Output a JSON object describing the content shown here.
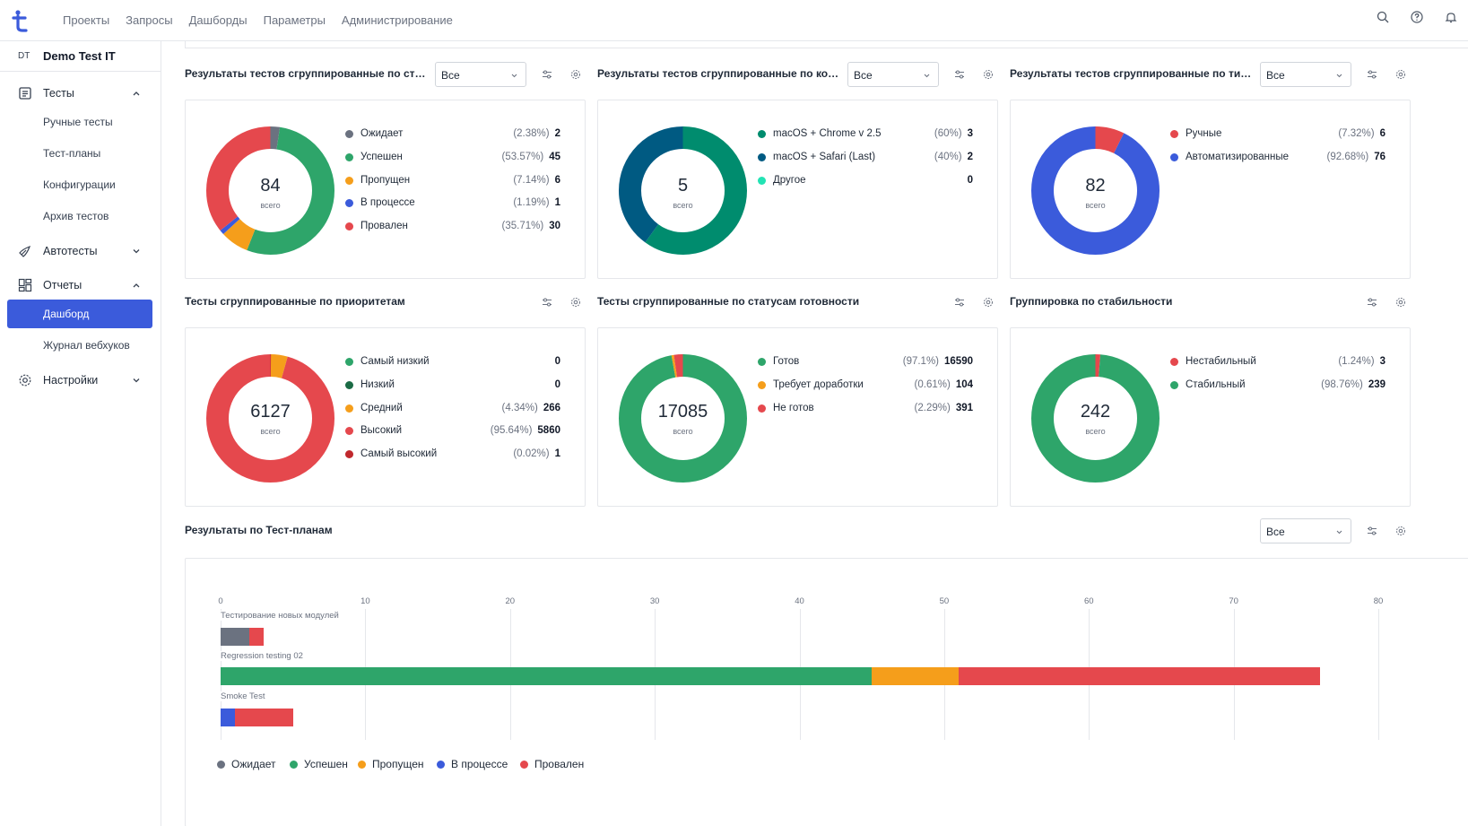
{
  "nav": {
    "items": [
      "Проекты",
      "Запросы",
      "Дашборды",
      "Параметры",
      "Администрирование"
    ]
  },
  "project": {
    "badge": "DT",
    "name": "Demo Test IT"
  },
  "sidebar": {
    "tests": "Тесты",
    "manual": "Ручные тесты",
    "plans": "Тест-планы",
    "configs": "Конфигурации",
    "archive": "Архив тестов",
    "autotests": "Автотесты",
    "reports": "Отчеты",
    "dashboard": "Дашборд",
    "webhooks": "Журнал вебхуков",
    "settings": "Настройки"
  },
  "widgets": [
    {
      "title": "Результаты тестов сгруппированные по статус...",
      "filter": "Все",
      "total": "84",
      "total_label": "всего",
      "legend": [
        {
          "label": "Ожидает",
          "pct": "(2.38%)",
          "val": "2",
          "color": "#6b7280",
          "value": 2
        },
        {
          "label": "Успешен",
          "pct": "(53.57%)",
          "val": "45",
          "color": "#2ea56a",
          "value": 45
        },
        {
          "label": "Пропущен",
          "pct": "(7.14%)",
          "val": "6",
          "color": "#f59e1b",
          "value": 6
        },
        {
          "label": "В процессе",
          "pct": "(1.19%)",
          "val": "1",
          "color": "#3b5bdb",
          "value": 1
        },
        {
          "label": "Провален",
          "pct": "(35.71%)",
          "val": "30",
          "color": "#e5484d",
          "value": 30
        }
      ]
    },
    {
      "title": "Результаты тестов сгруппированные по конфиг...",
      "filter": "Все",
      "total": "5",
      "total_label": "всего",
      "legend": [
        {
          "label": "macOS + Chrome v 2.5",
          "pct": "(60%)",
          "val": "3",
          "color": "#008c6e",
          "value": 3
        },
        {
          "label": "macOS + Safari (Last)",
          "pct": "(40%)",
          "val": "2",
          "color": "#005a82",
          "value": 2
        },
        {
          "label": "Другое",
          "pct": "",
          "val": "0",
          "color": "#22e3b4",
          "value": 0
        }
      ]
    },
    {
      "title": "Результаты тестов сгруппированные по типу ав...",
      "filter": "Все",
      "total": "82",
      "total_label": "всего",
      "legend": [
        {
          "label": "Ручные",
          "pct": "(7.32%)",
          "val": "6",
          "color": "#e5484d",
          "value": 6
        },
        {
          "label": "Автоматизированные",
          "pct": "(92.68%)",
          "val": "76",
          "color": "#3b5bdb",
          "value": 76
        }
      ]
    },
    {
      "title": "Тесты сгруппированные по приоритетам",
      "total": "6127",
      "total_label": "всего",
      "legend": [
        {
          "label": "Самый низкий",
          "pct": "",
          "val": "0",
          "color": "#2ea56a",
          "value": 0
        },
        {
          "label": "Низкий",
          "pct": "",
          "val": "0",
          "color": "#1b6b45",
          "value": 0
        },
        {
          "label": "Средний",
          "pct": "(4.34%)",
          "val": "266",
          "color": "#f59e1b",
          "value": 266
        },
        {
          "label": "Высокий",
          "pct": "(95.64%)",
          "val": "5860",
          "color": "#e5484d",
          "value": 5860
        },
        {
          "label": "Самый высокий",
          "pct": "(0.02%)",
          "val": "1",
          "color": "#c0282d",
          "value": 1
        }
      ]
    },
    {
      "title": "Тесты сгруппированные по статусам готовности",
      "total": "17085",
      "total_label": "всего",
      "legend": [
        {
          "label": "Готов",
          "pct": "(97.1%)",
          "val": "16590",
          "color": "#2ea56a",
          "value": 16590
        },
        {
          "label": "Требует доработки",
          "pct": "(0.61%)",
          "val": "104",
          "color": "#f59e1b",
          "value": 104
        },
        {
          "label": "Не готов",
          "pct": "(2.29%)",
          "val": "391",
          "color": "#e5484d",
          "value": 391
        }
      ]
    },
    {
      "title": "Группировка по стабильности",
      "total": "242",
      "total_label": "всего",
      "legend": [
        {
          "label": "Нестабильный",
          "pct": "(1.24%)",
          "val": "3",
          "color": "#e5484d",
          "value": 3
        },
        {
          "label": "Стабильный",
          "pct": "(98.76%)",
          "val": "239",
          "color": "#2ea56a",
          "value": 239
        }
      ]
    }
  ],
  "plans_widget": {
    "title": "Результаты по Тест-планам",
    "filter": "Все"
  },
  "chart_data": {
    "type": "bar",
    "orientation": "horizontal",
    "stacked": true,
    "categories": [
      "Тестирование новых модулей",
      "Regression testing 02",
      "Smoke Test"
    ],
    "xlim": [
      0,
      80
    ],
    "xticks": [
      "0",
      "10",
      "20",
      "30",
      "40",
      "50",
      "60",
      "70",
      "80"
    ],
    "series": [
      {
        "name": "Ожидает",
        "color": "#6b7280",
        "values": [
          2,
          0,
          0
        ]
      },
      {
        "name": "Успешен",
        "color": "#2ea56a",
        "values": [
          0,
          45,
          0
        ]
      },
      {
        "name": "Пропущен",
        "color": "#f59e1b",
        "values": [
          0,
          6,
          0
        ]
      },
      {
        "name": "В процессе",
        "color": "#3b5bdb",
        "values": [
          0,
          0,
          1
        ]
      },
      {
        "name": "Провален",
        "color": "#e5484d",
        "values": [
          1,
          25,
          4
        ]
      }
    ],
    "legend_position": "bottom-left"
  }
}
